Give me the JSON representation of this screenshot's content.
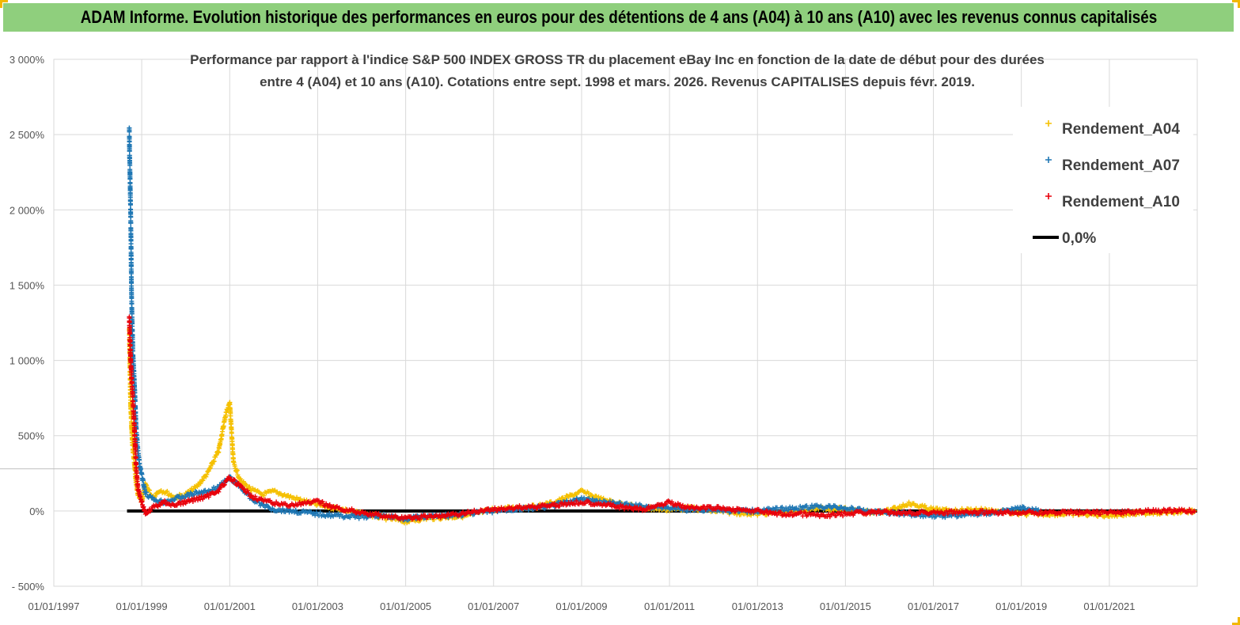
{
  "header": {
    "title": "ADAM Informe. Evolution historique des performances en euros pour des détentions de 4 ans (A04) à 10 ans (A10) avec les revenus connus capitalisés"
  },
  "colors": {
    "header_bg": "#8fcf7d",
    "A04": "#f5c000",
    "A07": "#1f77b4",
    "A10": "#e8000b",
    "zero": "#000000",
    "grid": "#d9d9d9"
  },
  "chart_data": {
    "type": "scatter",
    "title": [
      "Performance par rapport à l'indice S&P 500 INDEX GROSS TR  du placement eBay Inc en fonction de la date de début pour des durées",
      "entre 4 (A04) et 10 ans (A10). Cotations entre sept. 1998 et mars. 2026. Revenus CAPITALISES depuis févr. 2019."
    ],
    "xlabel": "",
    "ylabel": "",
    "x_ticks": [
      "01/01/1997",
      "01/01/1999",
      "01/01/2001",
      "01/01/2003",
      "01/01/2005",
      "01/01/2007",
      "01/01/2009",
      "01/01/2011",
      "01/01/2013",
      "01/01/2015",
      "01/01/2017",
      "01/01/2019",
      "01/01/2021"
    ],
    "y_ticks": [
      "3 000%",
      "2 500%",
      "2 000%",
      "1 500%",
      "1 000%",
      "500%",
      "0%",
      "- 500%"
    ],
    "xlim": [
      "1997-01-01",
      "2023-01-01"
    ],
    "ylim": [
      -500,
      3000
    ],
    "grid": true,
    "legend_position": "top-right",
    "series": [
      {
        "name": "Rendement_A04",
        "marker": "+",
        "x": [
          "1998-09-20",
          "1998-10-01",
          "1998-10-15",
          "1998-11-01",
          "1998-11-15",
          "1998-12-01",
          "1999-01-01",
          "1999-02-01",
          "1999-04-01",
          "1999-06-01",
          "1999-08-01",
          "1999-10-01",
          "2000-01-01",
          "2000-04-01",
          "2000-07-01",
          "2000-10-01",
          "2000-12-01",
          "2001-01-01",
          "2001-02-01",
          "2001-04-01",
          "2001-07-01",
          "2001-10-01",
          "2002-01-01",
          "2002-06-01",
          "2003-01-01",
          "2003-06-01",
          "2004-01-01",
          "2004-06-01",
          "2005-01-01",
          "2005-06-01",
          "2006-01-01",
          "2006-06-01",
          "2007-01-01",
          "2007-06-01",
          "2008-01-01",
          "2008-06-01",
          "2009-01-01",
          "2009-06-01",
          "2010-01-01",
          "2010-06-01",
          "2011-01-01",
          "2011-06-01",
          "2012-01-01",
          "2012-06-01",
          "2013-01-01",
          "2013-06-01",
          "2014-01-01",
          "2014-06-01",
          "2015-01-01",
          "2015-06-01",
          "2016-01-01",
          "2016-06-01",
          "2017-01-01",
          "2017-06-01",
          "2018-01-01",
          "2018-06-01",
          "2019-01-01",
          "2019-06-01",
          "2020-01-01",
          "2020-06-01",
          "2021-01-01",
          "2021-06-01",
          "2022-01-01",
          "2022-06-01",
          "2022-12-20"
        ],
        "y": [
          1210,
          700,
          450,
          320,
          180,
          100,
          60,
          180,
          90,
          140,
          120,
          90,
          110,
          160,
          250,
          400,
          650,
          720,
          320,
          200,
          140,
          110,
          130,
          90,
          40,
          20,
          -20,
          -40,
          -70,
          -50,
          -40,
          -30,
          10,
          20,
          30,
          60,
          130,
          80,
          40,
          20,
          10,
          20,
          0,
          -10,
          -20,
          -10,
          0,
          20,
          10,
          -10,
          0,
          50,
          10,
          0,
          10,
          0,
          -20,
          -20,
          -20,
          -20,
          -30,
          -20,
          -10,
          -10,
          0
        ]
      },
      {
        "name": "Rendement_A07",
        "marker": "+",
        "x": [
          "1998-09-20",
          "1998-09-22",
          "1998-09-25",
          "1998-09-28",
          "1998-10-01",
          "1998-10-04",
          "1998-10-08",
          "1998-10-12",
          "1998-10-20",
          "1998-11-01",
          "1998-11-15",
          "1998-12-01",
          "1998-12-15",
          "1999-01-01",
          "1999-02-01",
          "1999-04-01",
          "1999-07-01",
          "1999-10-01",
          "2000-01-01",
          "2000-04-01",
          "2000-07-01",
          "2000-10-01",
          "2001-01-01",
          "2001-04-01",
          "2001-07-01",
          "2001-10-01",
          "2002-01-01",
          "2002-06-01",
          "2003-01-01",
          "2003-06-01",
          "2004-01-01",
          "2004-06-01",
          "2005-01-01",
          "2005-06-01",
          "2006-01-01",
          "2006-06-01",
          "2007-01-01",
          "2007-06-01",
          "2008-01-01",
          "2008-06-01",
          "2009-01-01",
          "2009-06-01",
          "2010-01-01",
          "2010-06-01",
          "2011-01-01",
          "2011-06-01",
          "2012-01-01",
          "2012-06-01",
          "2013-01-01",
          "2013-06-01",
          "2014-01-01",
          "2014-06-01",
          "2015-01-01",
          "2015-06-01",
          "2016-01-01",
          "2016-06-01",
          "2017-01-01",
          "2017-06-01",
          "2018-01-01",
          "2018-06-01",
          "2019-01-01",
          "2019-06-01"
        ],
        "y": [
          2540,
          2370,
          2280,
          2120,
          1990,
          1790,
          1460,
          1300,
          1050,
          860,
          560,
          400,
          300,
          240,
          120,
          80,
          60,
          80,
          100,
          120,
          130,
          160,
          220,
          160,
          80,
          40,
          10,
          0,
          -20,
          -30,
          -40,
          -30,
          -50,
          -40,
          -30,
          -20,
          0,
          10,
          20,
          40,
          80,
          60,
          40,
          30,
          20,
          10,
          10,
          0,
          0,
          10,
          20,
          30,
          20,
          0,
          -10,
          -20,
          -30,
          -30,
          -20,
          -10,
          20,
          0
        ]
      },
      {
        "name": "Rendement_A10",
        "marker": "+",
        "x": [
          "1998-09-20",
          "1998-10-01",
          "1998-10-15",
          "1998-11-01",
          "1998-11-15",
          "1998-12-01",
          "1999-01-01",
          "1999-02-01",
          "1999-04-01",
          "1999-07-01",
          "1999-10-01",
          "2000-01-01",
          "2000-04-01",
          "2000-07-01",
          "2000-10-01",
          "2001-01-01",
          "2001-04-01",
          "2001-07-01",
          "2001-10-01",
          "2002-01-01",
          "2002-06-01",
          "2003-01-01",
          "2003-06-01",
          "2004-01-01",
          "2004-06-01",
          "2005-01-01",
          "2005-06-01",
          "2006-01-01",
          "2006-06-01",
          "2007-01-01",
          "2007-06-01",
          "2008-01-01",
          "2008-06-01",
          "2009-01-01",
          "2009-06-01",
          "2010-01-01",
          "2010-06-01",
          "2011-01-01",
          "2011-06-01",
          "2012-01-01",
          "2012-06-01",
          "2013-01-01",
          "2013-06-01",
          "2014-01-01",
          "2014-06-01",
          "2015-01-01",
          "2015-06-01",
          "2016-01-01",
          "2016-06-01",
          "2017-01-01",
          "2017-06-01",
          "2018-01-01",
          "2018-06-01",
          "2019-01-01",
          "2019-06-01",
          "2020-01-01",
          "2020-06-01",
          "2021-01-01",
          "2021-06-01",
          "2022-01-01",
          "2022-06-01",
          "2022-12-20"
        ],
        "y": [
          1290,
          1000,
          800,
          560,
          300,
          150,
          60,
          -20,
          20,
          60,
          40,
          60,
          80,
          100,
          140,
          220,
          160,
          100,
          70,
          50,
          40,
          60,
          20,
          -10,
          -30,
          -50,
          -40,
          -30,
          -10,
          10,
          20,
          30,
          40,
          60,
          50,
          20,
          10,
          60,
          20,
          20,
          10,
          0,
          -20,
          -20,
          -30,
          -20,
          -10,
          -10,
          -10,
          -10,
          -10,
          -10,
          -10,
          -10,
          -10,
          -10,
          -10,
          -10,
          -10,
          0,
          0,
          0
        ]
      },
      {
        "name": "0,0%",
        "type": "line",
        "x": [
          "1998-09-01",
          "2022-12-31"
        ],
        "y": [
          0,
          0
        ]
      }
    ]
  }
}
